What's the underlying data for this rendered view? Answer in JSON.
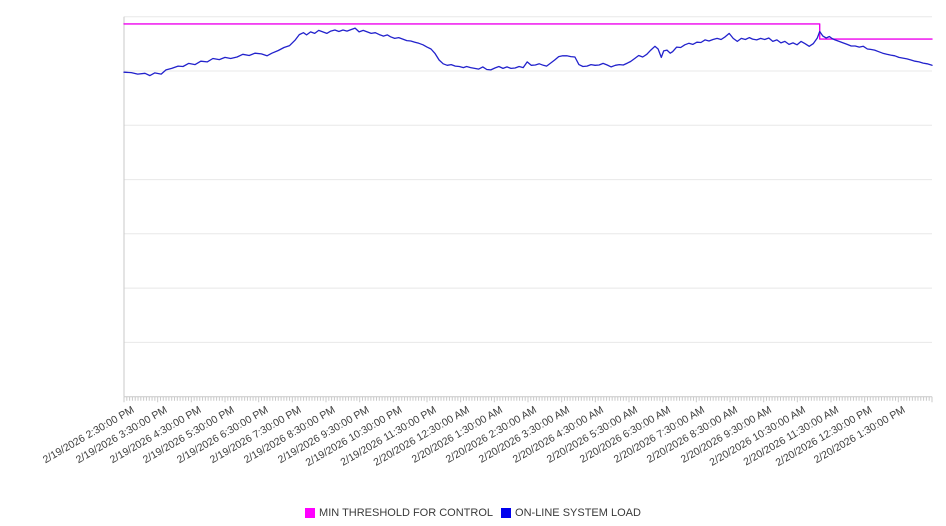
{
  "chart_data": {
    "type": "line",
    "title": "",
    "grid": "horizontal",
    "horizontal_gridline_count": 7,
    "y_axis_labels_visible": false,
    "value_scale": "percent_of_plot_height_0_100",
    "x_axis": {
      "tick_style": "dense-minor-ticks",
      "label_rotation_deg": -30,
      "labels": [
        "2/19/2026 2:30:00 PM",
        "2/19/2026 3:30:00 PM",
        "2/19/2026 4:30:00 PM",
        "2/19/2026 5:30:00 PM",
        "2/19/2026 6:30:00 PM",
        "2/19/2026 7:30:00 PM",
        "2/19/2026 8:30:00 PM",
        "2/19/2026 9:30:00 PM",
        "2/19/2026 10:30:00 PM",
        "2/19/2026 11:30:00 PM",
        "2/20/2026 12:30:00 AM",
        "2/20/2026 1:30:00 AM",
        "2/20/2026 2:30:00 AM",
        "2/20/2026 3:30:00 AM",
        "2/20/2026 4:30:00 AM",
        "2/20/2026 5:30:00 AM",
        "2/20/2026 6:30:00 AM",
        "2/20/2026 7:30:00 AM",
        "2/20/2026 8:30:00 AM",
        "2/20/2026 9:30:00 AM",
        "2/20/2026 10:30:00 AM",
        "2/20/2026 11:30:00 AM",
        "2/20/2026 12:30:00 PM",
        "2/20/2026 1:30:00 PM"
      ]
    },
    "legend_position": "bottom-center",
    "series": [
      {
        "name": "MIN THRESHOLD FOR CONTROL",
        "color": "#EE00EE",
        "swatch_color": "#FF00FF",
        "points": [
          [
            0,
            98.1
          ],
          [
            0.861,
            98.1
          ],
          [
            0.861,
            94.1
          ],
          [
            1,
            94.1
          ]
        ]
      },
      {
        "name": "ON-LINE SYSTEM LOAD",
        "color": "#2222CC",
        "swatch_color": "#0000EE",
        "points": [
          [
            0,
            85.4
          ],
          [
            0.009,
            85.3
          ],
          [
            0.017,
            84.9
          ],
          [
            0.026,
            85.1
          ],
          [
            0.032,
            84.5
          ],
          [
            0.038,
            85.2
          ],
          [
            0.046,
            84.9
          ],
          [
            0.052,
            86
          ],
          [
            0.059,
            86.4
          ],
          [
            0.067,
            87
          ],
          [
            0.073,
            86.9
          ],
          [
            0.08,
            87.7
          ],
          [
            0.088,
            87.4
          ],
          [
            0.095,
            88.3
          ],
          [
            0.103,
            88.1
          ],
          [
            0.11,
            89
          ],
          [
            0.118,
            88.7
          ],
          [
            0.125,
            89.3
          ],
          [
            0.132,
            89
          ],
          [
            0.14,
            89.4
          ],
          [
            0.147,
            90.1
          ],
          [
            0.155,
            89.8
          ],
          [
            0.162,
            90.4
          ],
          [
            0.17,
            90.2
          ],
          [
            0.177,
            89.7
          ],
          [
            0.183,
            90.4
          ],
          [
            0.191,
            91.1
          ],
          [
            0.198,
            91.9
          ],
          [
            0.205,
            92.4
          ],
          [
            0.212,
            93.9
          ],
          [
            0.217,
            95.3
          ],
          [
            0.222,
            95.8
          ],
          [
            0.226,
            95.2
          ],
          [
            0.231,
            96
          ],
          [
            0.236,
            95.6
          ],
          [
            0.241,
            96.4
          ],
          [
            0.246,
            96
          ],
          [
            0.251,
            95.6
          ],
          [
            0.256,
            96.2
          ],
          [
            0.261,
            96.5
          ],
          [
            0.266,
            96.1
          ],
          [
            0.271,
            96.5
          ],
          [
            0.276,
            96.2
          ],
          [
            0.281,
            96.6
          ],
          [
            0.286,
            97
          ],
          [
            0.291,
            96
          ],
          [
            0.296,
            96.4
          ],
          [
            0.301,
            96
          ],
          [
            0.306,
            95.6
          ],
          [
            0.311,
            95.8
          ],
          [
            0.316,
            95.3
          ],
          [
            0.321,
            94.9
          ],
          [
            0.326,
            95.2
          ],
          [
            0.33,
            94.7
          ],
          [
            0.335,
            94.3
          ],
          [
            0.34,
            94.5
          ],
          [
            0.345,
            94.1
          ],
          [
            0.35,
            93.7
          ],
          [
            0.355,
            93.6
          ],
          [
            0.36,
            93.3
          ],
          [
            0.365,
            93
          ],
          [
            0.37,
            92.6
          ],
          [
            0.375,
            92
          ],
          [
            0.38,
            91.5
          ],
          [
            0.385,
            90.3
          ],
          [
            0.39,
            88.6
          ],
          [
            0.395,
            87.6
          ],
          [
            0.4,
            87.2
          ],
          [
            0.405,
            87.4
          ],
          [
            0.41,
            87
          ],
          [
            0.415,
            86.9
          ],
          [
            0.42,
            86.6
          ],
          [
            0.424,
            86.9
          ],
          [
            0.429,
            86.6
          ],
          [
            0.434,
            86.4
          ],
          [
            0.439,
            86.2
          ],
          [
            0.444,
            86.8
          ],
          [
            0.449,
            86.1
          ],
          [
            0.454,
            86
          ],
          [
            0.459,
            86.5
          ],
          [
            0.464,
            86.9
          ],
          [
            0.469,
            86.4
          ],
          [
            0.474,
            86.8
          ],
          [
            0.479,
            86.4
          ],
          [
            0.484,
            86.5
          ],
          [
            0.489,
            86.9
          ],
          [
            0.494,
            86.6
          ],
          [
            0.499,
            88.1
          ],
          [
            0.504,
            87.2
          ],
          [
            0.509,
            87.3
          ],
          [
            0.514,
            87.6
          ],
          [
            0.519,
            87.2
          ],
          [
            0.523,
            87
          ],
          [
            0.528,
            87.8
          ],
          [
            0.533,
            88.6
          ],
          [
            0.538,
            89.5
          ],
          [
            0.543,
            89.7
          ],
          [
            0.548,
            89.7
          ],
          [
            0.553,
            89.5
          ],
          [
            0.558,
            89.4
          ],
          [
            0.563,
            87.4
          ],
          [
            0.568,
            86.9
          ],
          [
            0.573,
            87
          ],
          [
            0.578,
            87.4
          ],
          [
            0.583,
            87.2
          ],
          [
            0.588,
            87.3
          ],
          [
            0.593,
            87.7
          ],
          [
            0.598,
            87.3
          ],
          [
            0.603,
            86.8
          ],
          [
            0.608,
            87.2
          ],
          [
            0.613,
            87.4
          ],
          [
            0.618,
            87.3
          ],
          [
            0.623,
            87.8
          ],
          [
            0.627,
            88.2
          ],
          [
            0.632,
            89
          ],
          [
            0.637,
            89.8
          ],
          [
            0.642,
            89.4
          ],
          [
            0.647,
            90.1
          ],
          [
            0.652,
            91.2
          ],
          [
            0.657,
            92.2
          ],
          [
            0.661,
            91.5
          ],
          [
            0.665,
            89.3
          ],
          [
            0.668,
            91
          ],
          [
            0.672,
            91.2
          ],
          [
            0.676,
            90.4
          ],
          [
            0.679,
            90.8
          ],
          [
            0.684,
            92
          ],
          [
            0.689,
            91.9
          ],
          [
            0.694,
            92.6
          ],
          [
            0.699,
            93
          ],
          [
            0.704,
            92.7
          ],
          [
            0.709,
            93.3
          ],
          [
            0.714,
            93.2
          ],
          [
            0.719,
            93.9
          ],
          [
            0.724,
            93.6
          ],
          [
            0.729,
            94
          ],
          [
            0.734,
            94.3
          ],
          [
            0.739,
            94
          ],
          [
            0.744,
            94.7
          ],
          [
            0.749,
            95.6
          ],
          [
            0.754,
            94.3
          ],
          [
            0.759,
            93.5
          ],
          [
            0.764,
            94.3
          ],
          [
            0.769,
            94
          ],
          [
            0.774,
            94.5
          ],
          [
            0.778,
            94.1
          ],
          [
            0.783,
            93.9
          ],
          [
            0.788,
            94.3
          ],
          [
            0.793,
            94
          ],
          [
            0.798,
            94.4
          ],
          [
            0.803,
            93.5
          ],
          [
            0.808,
            93.9
          ],
          [
            0.813,
            93.1
          ],
          [
            0.818,
            93.5
          ],
          [
            0.823,
            92.7
          ],
          [
            0.828,
            93.1
          ],
          [
            0.833,
            92.6
          ],
          [
            0.838,
            93.5
          ],
          [
            0.843,
            92.9
          ],
          [
            0.848,
            92.2
          ],
          [
            0.853,
            92.9
          ],
          [
            0.858,
            94.4
          ],
          [
            0.861,
            96.1
          ],
          [
            0.865,
            94.9
          ],
          [
            0.869,
            94.4
          ],
          [
            0.873,
            94.8
          ],
          [
            0.876,
            94.3
          ],
          [
            0.88,
            93.9
          ],
          [
            0.885,
            93.5
          ],
          [
            0.89,
            93.1
          ],
          [
            0.895,
            92.7
          ],
          [
            0.9,
            92.3
          ],
          [
            0.905,
            92.3
          ],
          [
            0.91,
            92
          ],
          [
            0.915,
            92.2
          ],
          [
            0.92,
            91.5
          ],
          [
            0.924,
            91.4
          ],
          [
            0.929,
            91.2
          ],
          [
            0.934,
            90.8
          ],
          [
            0.939,
            90.4
          ],
          [
            0.944,
            90.1
          ],
          [
            0.949,
            89.9
          ],
          [
            0.954,
            89.7
          ],
          [
            0.959,
            89.3
          ],
          [
            0.964,
            89.1
          ],
          [
            0.969,
            88.9
          ],
          [
            0.974,
            88.6
          ],
          [
            0.979,
            88.3
          ],
          [
            0.984,
            88.1
          ],
          [
            0.989,
            87.8
          ],
          [
            0.994,
            87.6
          ],
          [
            1,
            87.2
          ]
        ]
      }
    ],
    "colors": {
      "gridline": "#E8E8E8",
      "axis": "#C9C9C9",
      "tick": "#C9C9C9",
      "label_text": "#3D3D3D"
    }
  }
}
